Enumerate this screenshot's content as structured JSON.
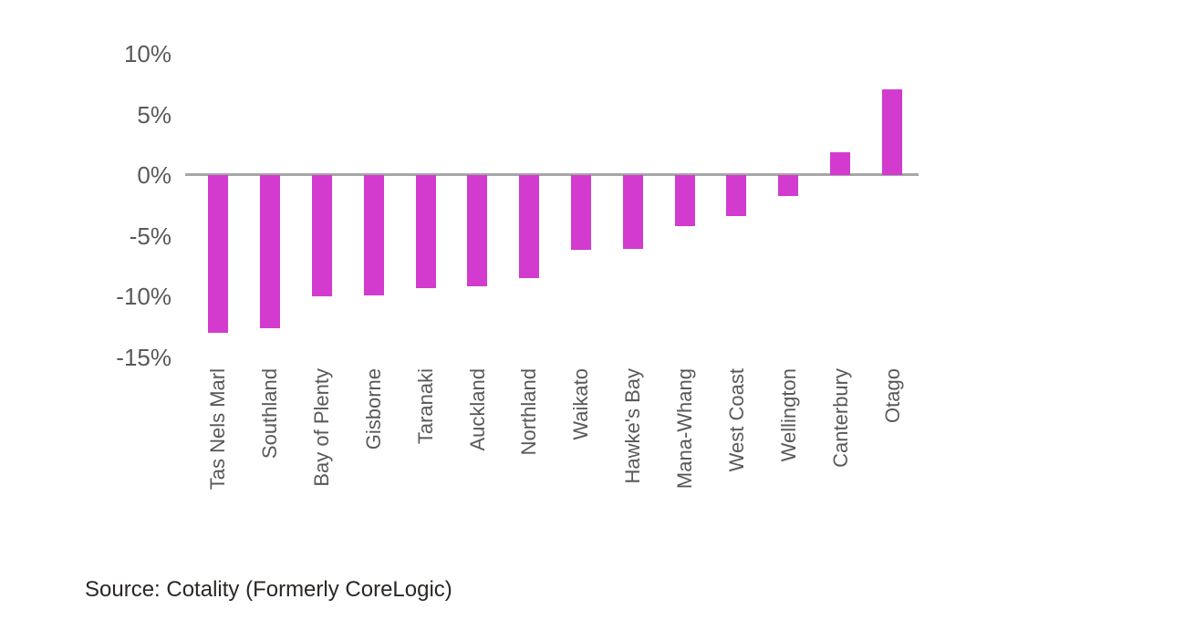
{
  "page": {
    "background": "#ffffff"
  },
  "chart_data": {
    "type": "bar",
    "title": "",
    "categories": [
      "Tas Nels Marl",
      "Southland",
      "Bay of Plenty",
      "Gisborne",
      "Taranaki",
      "Auckland",
      "Northland",
      "Waikato",
      "Hawke's Bay",
      "Mana-Whang",
      "West Coast",
      "Wellington",
      "Canterbury",
      "Otago"
    ],
    "values": [
      -13.0,
      -12.6,
      -10.0,
      -9.9,
      -9.3,
      -9.2,
      -8.5,
      -6.2,
      -6.1,
      -4.2,
      -3.4,
      -1.7,
      1.9,
      7.1
    ],
    "unit": "%",
    "xlabel": "",
    "ylabel": "",
    "ylim": [
      -15,
      10
    ],
    "yticks": [
      {
        "value": 10,
        "label": "10%"
      },
      {
        "value": 5,
        "label": "5%"
      },
      {
        "value": 0,
        "label": "0%"
      },
      {
        "value": -5,
        "label": "-5%"
      },
      {
        "value": -10,
        "label": "-10%"
      },
      {
        "value": -15,
        "label": "-15%"
      }
    ],
    "grid": false,
    "legend": false,
    "bar_color": "#d33bce",
    "axis_line_color": "#a6a6a6",
    "tick_label_color": "#595959"
  },
  "source": {
    "text": "Source: Cotality (Formerly CoreLogic)"
  }
}
